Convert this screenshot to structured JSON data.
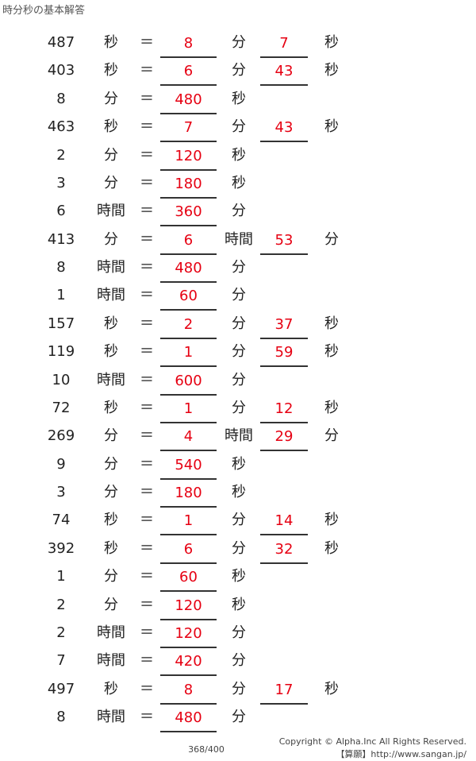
{
  "title": "時分秒の基本解答",
  "accent_color": "#e60012",
  "rows": [
    {
      "num": "487",
      "u1": "秒",
      "a1": "8",
      "u2": "分",
      "a2": "7",
      "u3": "秒"
    },
    {
      "num": "403",
      "u1": "秒",
      "a1": "6",
      "u2": "分",
      "a2": "43",
      "u3": "秒"
    },
    {
      "num": "8",
      "u1": "分",
      "a1": "480",
      "u2": "秒"
    },
    {
      "num": "463",
      "u1": "秒",
      "a1": "7",
      "u2": "分",
      "a2": "43",
      "u3": "秒"
    },
    {
      "num": "2",
      "u1": "分",
      "a1": "120",
      "u2": "秒"
    },
    {
      "num": "3",
      "u1": "分",
      "a1": "180",
      "u2": "秒"
    },
    {
      "num": "6",
      "u1": "時間",
      "a1": "360",
      "u2": "分"
    },
    {
      "num": "413",
      "u1": "分",
      "a1": "6",
      "u2": "時間",
      "a2": "53",
      "u3": "分"
    },
    {
      "num": "8",
      "u1": "時間",
      "a1": "480",
      "u2": "分"
    },
    {
      "num": "1",
      "u1": "時間",
      "a1": "60",
      "u2": "分"
    },
    {
      "num": "157",
      "u1": "秒",
      "a1": "2",
      "u2": "分",
      "a2": "37",
      "u3": "秒"
    },
    {
      "num": "119",
      "u1": "秒",
      "a1": "1",
      "u2": "分",
      "a2": "59",
      "u3": "秒"
    },
    {
      "num": "10",
      "u1": "時間",
      "a1": "600",
      "u2": "分"
    },
    {
      "num": "72",
      "u1": "秒",
      "a1": "1",
      "u2": "分",
      "a2": "12",
      "u3": "秒"
    },
    {
      "num": "269",
      "u1": "分",
      "a1": "4",
      "u2": "時間",
      "a2": "29",
      "u3": "分"
    },
    {
      "num": "9",
      "u1": "分",
      "a1": "540",
      "u2": "秒"
    },
    {
      "num": "3",
      "u1": "分",
      "a1": "180",
      "u2": "秒"
    },
    {
      "num": "74",
      "u1": "秒",
      "a1": "1",
      "u2": "分",
      "a2": "14",
      "u3": "秒"
    },
    {
      "num": "392",
      "u1": "秒",
      "a1": "6",
      "u2": "分",
      "a2": "32",
      "u3": "秒"
    },
    {
      "num": "1",
      "u1": "分",
      "a1": "60",
      "u2": "秒"
    },
    {
      "num": "2",
      "u1": "分",
      "a1": "120",
      "u2": "秒"
    },
    {
      "num": "2",
      "u1": "時間",
      "a1": "120",
      "u2": "分"
    },
    {
      "num": "7",
      "u1": "時間",
      "a1": "420",
      "u2": "分"
    },
    {
      "num": "497",
      "u1": "秒",
      "a1": "8",
      "u2": "分",
      "a2": "17",
      "u3": "秒"
    },
    {
      "num": "8",
      "u1": "時間",
      "a1": "480",
      "u2": "分"
    }
  ],
  "equals": "＝",
  "page_number": "368/400",
  "copyright": "Copyright © Alpha.Inc All Rights Reserved.",
  "site": "【算願】http://www.sangan.jp/"
}
